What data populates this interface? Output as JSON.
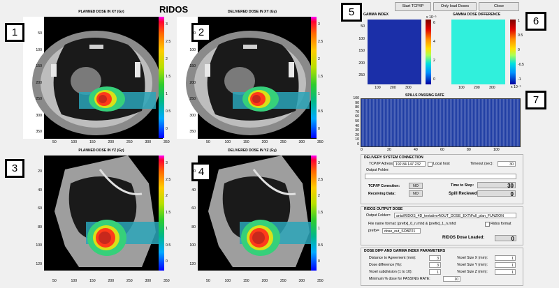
{
  "app_title": "RIDOS",
  "plots": {
    "p1": {
      "title": "PLANNED DOSE IN XY (Gy)",
      "badge": "1"
    },
    "p2": {
      "title": "DELIVERED DOSE IN XY (Gy)",
      "badge": "2"
    },
    "p3": {
      "title": "PLANNED DOSE IN YZ (Gy)",
      "badge": "3"
    },
    "p4": {
      "title": "DELIVERED DOSE IN YZ (Gy)",
      "badge": "4"
    },
    "xy_yticks": [
      "50",
      "100",
      "150",
      "200",
      "250",
      "300",
      "350"
    ],
    "xy_xticks": [
      "50",
      "100",
      "150",
      "200",
      "250",
      "300",
      "350"
    ],
    "yz_yticks": [
      "20",
      "40",
      "60",
      "80",
      "100",
      "120"
    ],
    "yz_xticks": [
      "50",
      "100",
      "150",
      "200",
      "250",
      "300",
      "350"
    ],
    "dose_cb_ticks": [
      "3",
      "2.5",
      "2",
      "1.5",
      "1",
      "0.5",
      "0"
    ]
  },
  "gamma": {
    "title": "GAMMA INDEX",
    "badge": "5",
    "yticks": [
      "50",
      "100",
      "150",
      "200",
      "250"
    ],
    "xticks": [
      "100",
      "200",
      "300"
    ],
    "cb_ticks": [
      "6",
      "4",
      "2",
      "0"
    ],
    "cb_exp": "x 10⁻⁵"
  },
  "gamma_diff": {
    "title": "GAMMA DOSE DIFFERENCE",
    "badge": "6",
    "cb_ticks": [
      "1",
      "0.5",
      "0",
      "-0.5",
      "-1"
    ],
    "cb_exp": "x 10⁻⁵",
    "xticks": [
      "100",
      "200",
      "300"
    ]
  },
  "spills": {
    "title": "SPILLS PASSING RATE",
    "badge": "7",
    "yticks": [
      "100",
      "90",
      "80",
      "70",
      "60",
      "50",
      "40",
      "30",
      "20",
      "10",
      "0"
    ],
    "xticks": [
      "0",
      "20",
      "40",
      "60",
      "80",
      "100"
    ]
  },
  "buttons": {
    "start": "Start TCP/IP",
    "load": "Only load Doses",
    "close": "Close"
  },
  "delivery": {
    "title": "DELIVERY SYSTEM CONNECTION",
    "ip_label": "TCP/IP Adress:",
    "ip_value": "192.84.147.232",
    "localhost_label": "Local host",
    "timeout_label": "Timeout (sec):",
    "timeout_value": "30",
    "output_label": "Output Folder:",
    "output_value": "",
    "conn_label": "TCP/IP Conection:",
    "conn_value": "NO",
    "time_stop_label": "Time to Stop:",
    "time_stop_value": "30",
    "recv_label": "Receiving Data:",
    "recv_value": "NO",
    "spill_label": "Spill Recieved:",
    "spill_value": "0"
  },
  "output_dose": {
    "title": "RIDOS OUTPUT DOSE",
    "folder_label": "Output Folder=",
    "folder_value": "ania\\RIDOS_4D_tentativo4\\OUT_DOSE_EXT\\Full_plan_FUNZION",
    "fmt_text": "File name format: [prefix]_0_n.mhd & [prefix]_1_n.mhd",
    "ridos_format_label": "Ridos format",
    "prefix_label": "prefix=",
    "prefix_value": "dose_out_SOBP21",
    "loaded_label": "RIDOS Dose Loaded:",
    "loaded_value": "0"
  },
  "params": {
    "title": "DOSE DIFF AND GAMMA INDEX PARAMETERS",
    "dist_label": "Distance to Agreement (mm):",
    "dist_value": "3",
    "dosediff_label": "Dose difference (%):",
    "dosediff_value": "3",
    "voxsub_label": "Voxel subdivision (1 to 10):",
    "voxsub_value": "1",
    "vx_label": "Voxel Size X (mm):",
    "vx_value": "1",
    "vy_label": "Voxel Size Y (mm):",
    "vy_value": "1",
    "vz_label": "Voxel Size Z (mm):",
    "vz_value": "1",
    "min_label": "Minimum % dose for PASSING RATE:",
    "min_value": "10"
  },
  "colors": {
    "accent": "#ff0000",
    "gamma_bg": "#1b2fa8",
    "diff_bg": "#30f0dc",
    "spill_bar": "#1f3da3"
  }
}
